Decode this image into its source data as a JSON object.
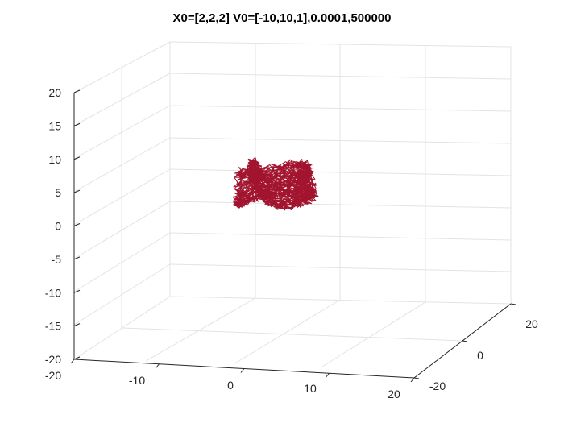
{
  "chart_data": {
    "type": "line",
    "projection": "3d",
    "title": "X0=[2,2,2] V0=[-10,10,1],0.0001,500000",
    "xlabel": "",
    "ylabel": "",
    "zlabel": "",
    "xlim": [
      -20,
      20
    ],
    "ylim": [
      -20,
      20
    ],
    "zlim": [
      -20,
      20
    ],
    "x_ticks": [
      "-20",
      "-10",
      "0",
      "10",
      "20"
    ],
    "y_ticks": [
      "-20",
      "0",
      "20"
    ],
    "z_ticks": [
      "20",
      "15",
      "10",
      "5",
      "0",
      "-5",
      "-10",
      "-15",
      "-20"
    ],
    "grid": true,
    "series_color": "#a2142f",
    "series": [
      {
        "x": [
          2,
          3,
          -1,
          4,
          -3,
          1,
          3,
          -2,
          0,
          4,
          -4,
          2,
          1,
          -3,
          3,
          -1,
          2,
          -2
        ],
        "y": [
          2,
          -2,
          3,
          1,
          -2,
          4,
          -3,
          2,
          -1,
          3,
          1,
          -4,
          3,
          -2,
          2,
          1,
          -3,
          2
        ],
        "z": [
          2,
          3,
          4,
          1,
          2,
          5,
          3,
          0,
          3,
          2,
          4,
          1,
          3,
          2,
          4,
          3,
          1,
          2
        ]
      }
    ]
  }
}
